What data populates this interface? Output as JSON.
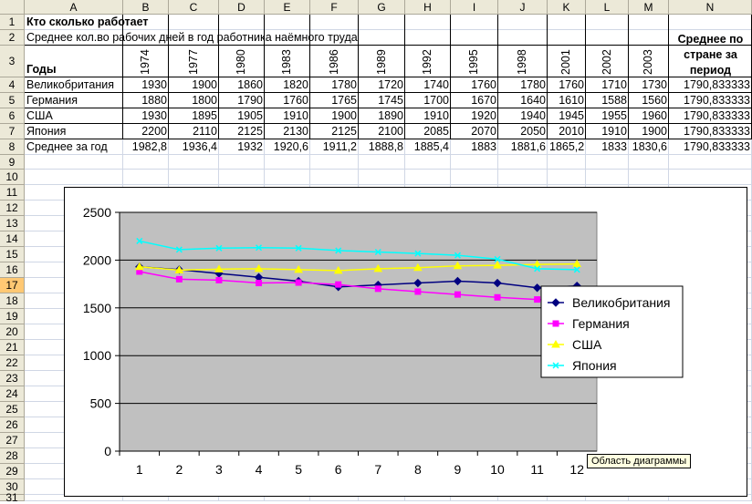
{
  "column_headers": [
    "A",
    "B",
    "C",
    "D",
    "E",
    "F",
    "G",
    "H",
    "I",
    "J",
    "K",
    "L",
    "M",
    "N"
  ],
  "row_headers": [
    "1",
    "2",
    "3",
    "4",
    "5",
    "6",
    "7",
    "8",
    "9",
    "10",
    "11",
    "12",
    "13",
    "14",
    "15",
    "16",
    "17",
    "18",
    "19",
    "20",
    "21",
    "22",
    "23",
    "24",
    "25",
    "26",
    "27",
    "28",
    "29",
    "30",
    "31"
  ],
  "active_row": "17",
  "sheet": {
    "title": "Кто сколько работает",
    "subtitle": "Среднее кол.во рабочих дней в год работника наёмного труда",
    "years_label": "Годы",
    "avg_header": "Среднее по стране за период",
    "years": [
      "1974",
      "1977",
      "1980",
      "1983",
      "1986",
      "1989",
      "1992",
      "1995",
      "1998",
      "2001",
      "2002",
      "2003"
    ],
    "rows": [
      {
        "country": "Великобритания",
        "values": [
          "1930",
          "1900",
          "1860",
          "1820",
          "1780",
          "1720",
          "1740",
          "1760",
          "1780",
          "1760",
          "1710",
          "1730"
        ],
        "avg": "1790,833333"
      },
      {
        "country": "Германия",
        "values": [
          "1880",
          "1800",
          "1790",
          "1760",
          "1765",
          "1745",
          "1700",
          "1670",
          "1640",
          "1610",
          "1588",
          "1560"
        ],
        "avg": "1790,833333"
      },
      {
        "country": "США",
        "values": [
          "1930",
          "1895",
          "1905",
          "1910",
          "1900",
          "1890",
          "1910",
          "1920",
          "1940",
          "1945",
          "1955",
          "1960"
        ],
        "avg": "1790,833333"
      },
      {
        "country": "Япония",
        "values": [
          "2200",
          "2110",
          "2125",
          "2130",
          "2125",
          "2100",
          "2085",
          "2070",
          "2050",
          "2010",
          "1910",
          "1900"
        ],
        "avg": "1790,833333"
      }
    ],
    "yearly_avg": {
      "label": "Среднее за год",
      "values": [
        "1982,8",
        "1936,4",
        "1932",
        "1920,6",
        "1911,2",
        "1888,8",
        "1885,4",
        "1883",
        "1881,6",
        "1865,2",
        "1833",
        "1830,6"
      ],
      "avg": "1790,833333"
    }
  },
  "tooltip": "Область диаграммы",
  "chart_data": {
    "type": "line",
    "categories": [
      "1",
      "2",
      "3",
      "4",
      "5",
      "6",
      "7",
      "8",
      "9",
      "10",
      "11",
      "12"
    ],
    "ylim": [
      0,
      2500
    ],
    "yticks": [
      "0",
      "500",
      "1000",
      "1500",
      "2000",
      "2500"
    ],
    "grid": true,
    "legend": "right",
    "plot_background": "#c0c0c0",
    "series": [
      {
        "name": "Великобритания",
        "color": "#000080",
        "marker": "diamond",
        "values": [
          1930,
          1900,
          1860,
          1820,
          1780,
          1720,
          1740,
          1760,
          1780,
          1760,
          1710,
          1730
        ]
      },
      {
        "name": "Германия",
        "color": "#ff00ff",
        "marker": "square",
        "values": [
          1880,
          1800,
          1790,
          1760,
          1765,
          1745,
          1700,
          1670,
          1640,
          1610,
          1588,
          1560
        ]
      },
      {
        "name": "США",
        "color": "#ffff00",
        "marker": "triangle",
        "values": [
          1930,
          1895,
          1905,
          1910,
          1900,
          1890,
          1910,
          1920,
          1940,
          1945,
          1955,
          1960
        ]
      },
      {
        "name": "Япония",
        "color": "#00ffff",
        "marker": "x",
        "values": [
          2200,
          2110,
          2125,
          2130,
          2125,
          2100,
          2085,
          2070,
          2050,
          2010,
          1910,
          1900
        ]
      }
    ]
  }
}
